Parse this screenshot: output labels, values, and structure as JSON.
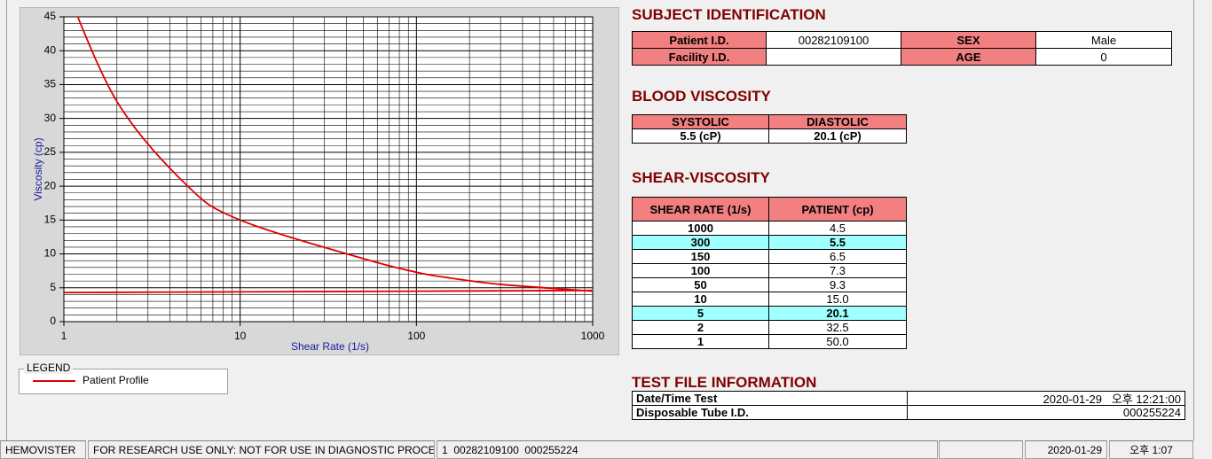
{
  "chart_data": {
    "type": "line",
    "y_label": "Viscosity (cp)",
    "x_label": "Shear Rate (1/s)",
    "x_scale": "log",
    "xlim": [
      1,
      1000
    ],
    "xticks": [
      1,
      10,
      100,
      1000
    ],
    "ylim": [
      0,
      45
    ],
    "yticks": [
      0,
      5,
      10,
      15,
      20,
      25,
      30,
      35,
      40,
      45
    ],
    "grid": true,
    "minor_grid": true,
    "series": [
      {
        "name": "Patient Profile",
        "color": "#e00000",
        "x": [
          1,
          2,
          5,
          10,
          50,
          100,
          150,
          300,
          1000
        ],
        "values": [
          50,
          32.5,
          20.1,
          15.0,
          9.3,
          7.3,
          6.5,
          5.5,
          4.5
        ]
      },
      {
        "color": "#e00000",
        "x": [
          1,
          10,
          100,
          1000
        ],
        "values": [
          4.3,
          4.4,
          4.5,
          4.6
        ]
      }
    ]
  },
  "legend": {
    "title": "LEGEND"
  },
  "subject_identification": {
    "title": "SUBJECT IDENTIFICATION",
    "rows": [
      [
        "Patient I.D.",
        "00282109100",
        "SEX",
        "Male"
      ],
      [
        "Facility I.D.",
        null,
        "AGE",
        "0"
      ]
    ]
  },
  "blood_viscosity": {
    "title": "BLOOD VISCOSITY",
    "headers": [
      "SYSTOLIC",
      "DIASTOLIC"
    ],
    "values": [
      "5.5 (cP)",
      "20.1 (cP)"
    ]
  },
  "shear_viscosity": {
    "title": "SHEAR-VISCOSITY",
    "headers": [
      "SHEAR RATE (1/s)",
      "PATIENT (cp)"
    ],
    "rows": [
      {
        "cells": [
          "1000",
          "4.5"
        ],
        "highlight": false
      },
      {
        "cells": [
          "300",
          "5.5"
        ],
        "highlight": true
      },
      {
        "cells": [
          "150",
          "6.5"
        ],
        "highlight": false
      },
      {
        "cells": [
          "100",
          "7.3"
        ],
        "highlight": false
      },
      {
        "cells": [
          "50",
          "9.3"
        ],
        "highlight": false
      },
      {
        "cells": [
          "10",
          "15.0"
        ],
        "highlight": false
      },
      {
        "cells": [
          "5",
          "20.1"
        ],
        "highlight": true
      },
      {
        "cells": [
          "2",
          "32.5"
        ],
        "highlight": false
      },
      {
        "cells": [
          "1",
          "50.0"
        ],
        "highlight": false
      }
    ]
  },
  "test_file_information": {
    "title": "TEST FILE INFORMATION",
    "rows": [
      [
        "Date/Time Test",
        "2020-01-29   오후 12:21:00"
      ],
      [
        "Disposable Tube I.D.",
        "000255224"
      ]
    ]
  },
  "status_bar": [
    "HEMOVISTER",
    "FOR RESEARCH USE ONLY: NOT FOR USE IN DIAGNOSTIC PROCEDURES",
    "1  00282109100  000255224",
    null,
    "2020-01-29",
    "오후 1:07"
  ]
}
